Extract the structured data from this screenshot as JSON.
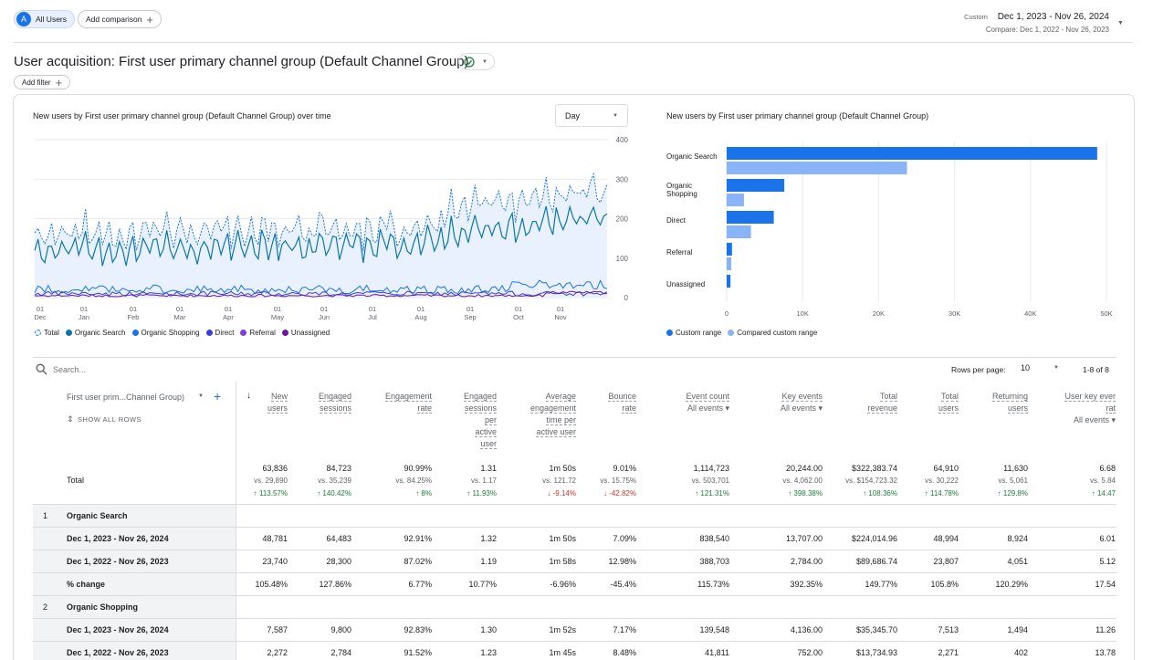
{
  "top": {
    "segment_badge": "A",
    "segment_label": "All Users",
    "add_comparison": "Add comparison",
    "date_range_label": "Custom",
    "date_range": "Dec 1, 2023 - Nov 26, 2024",
    "compare_range": "Compare: Dec 1, 2022 - Nov 26, 2023"
  },
  "page": {
    "title": "User acquisition: First user primary channel group (Default Channel Group)",
    "add_filter": "Add filter"
  },
  "line_chart": {
    "title": "New users by First user primary channel group (Default Channel Group) over time",
    "granularity": "Day",
    "y_ticks": [
      "400",
      "300",
      "200",
      "100",
      "0"
    ],
    "x_ticks": [
      {
        "d": "01",
        "m": "Dec"
      },
      {
        "d": "01",
        "m": "Jan"
      },
      {
        "d": "01",
        "m": "Feb"
      },
      {
        "d": "01",
        "m": "Mar"
      },
      {
        "d": "01",
        "m": "Apr"
      },
      {
        "d": "01",
        "m": "May"
      },
      {
        "d": "01",
        "m": "Jun"
      },
      {
        "d": "01",
        "m": "Jul"
      },
      {
        "d": "01",
        "m": "Aug"
      },
      {
        "d": "01",
        "m": "Sep"
      },
      {
        "d": "01",
        "m": "Oct"
      },
      {
        "d": "01",
        "m": "Nov"
      }
    ],
    "legend": [
      {
        "label": "Total",
        "color": "#c5dcf5"
      },
      {
        "label": "Organic Search",
        "color": "#0b76a8"
      },
      {
        "label": "Organic Shopping",
        "color": "#1a73e8"
      },
      {
        "label": "Direct",
        "color": "#3b3fd8"
      },
      {
        "label": "Referral",
        "color": "#7e3fd8"
      },
      {
        "label": "Unassigned",
        "color": "#6a1b9a"
      }
    ]
  },
  "chart_data": [
    {
      "type": "bar",
      "title": "New users by First user primary channel group (Default Channel Group)",
      "categories": [
        "Organic Search",
        "Organic Shopping",
        "Direct",
        "Referral",
        "Unassigned"
      ],
      "series": [
        {
          "name": "Custom range",
          "values": [
            48781,
            7587,
            6200,
            700,
            500
          ],
          "color": "#1a73e8"
        },
        {
          "name": "Compared custom range",
          "values": [
            23740,
            2272,
            3200,
            600,
            0
          ],
          "color": "#8ab4f8"
        }
      ],
      "x_ticks": [
        "0",
        "10K",
        "20K",
        "30K",
        "40K",
        "50K"
      ],
      "xlim": [
        0,
        50000
      ],
      "orientation": "horizontal",
      "legend": "bottom"
    }
  ],
  "table": {
    "search_placeholder": "Search...",
    "rows_per_page_label": "Rows per page:",
    "rows_per_page": "10",
    "pagination": "1-8 of 8",
    "dimension_header": "First user prim...Channel Group)",
    "show_all_rows": "SHOW ALL ROWS",
    "headers": [
      {
        "l1": "New",
        "l2": "users",
        "l3": "",
        "l4": "",
        "sub": ""
      },
      {
        "l1": "Engaged",
        "l2": "sessions",
        "l3": "",
        "l4": "",
        "sub": ""
      },
      {
        "l1": "Engagement",
        "l2": "rate",
        "l3": "",
        "l4": "",
        "sub": ""
      },
      {
        "l1": "Engaged",
        "l2": "sessions",
        "l3": "per",
        "l4": "active",
        "l5": "user",
        "sub": ""
      },
      {
        "l1": "Average",
        "l2": "engagement",
        "l3": "time per",
        "l4": "active user",
        "sub": ""
      },
      {
        "l1": "Bounce",
        "l2": "rate",
        "l3": "",
        "l4": "",
        "sub": ""
      },
      {
        "l1": "Event count",
        "l2": "",
        "l3": "",
        "l4": "",
        "sub": "All events"
      },
      {
        "l1": "Key events",
        "l2": "",
        "l3": "",
        "l4": "",
        "sub": "All events"
      },
      {
        "l1": "Total",
        "l2": "revenue",
        "l3": "",
        "l4": "",
        "sub": ""
      },
      {
        "l1": "Total",
        "l2": "users",
        "l3": "",
        "l4": "",
        "sub": ""
      },
      {
        "l1": "Returning",
        "l2": "users",
        "l3": "",
        "l4": "",
        "sub": ""
      },
      {
        "l1": "User key ever",
        "l2": "rat",
        "l3": "",
        "l4": "",
        "sub": "All events"
      }
    ],
    "total_label": "Total",
    "totals": [
      "63,836",
      "84,723",
      "90.99%",
      "1.31",
      "1m 50s",
      "9.01%",
      "1,114,723",
      "20,244.00",
      "$322,383.74",
      "64,910",
      "11,630",
      "6.68"
    ],
    "totals_vs": [
      "vs. 29,890",
      "vs. 35,239",
      "vs. 84.25%",
      "vs. 1.17",
      "vs. 121.72",
      "vs. 15.75%",
      "vs. 503,701",
      "vs. 4,062.00",
      "vs. $154,723.32",
      "vs. 30,222",
      "vs. 5,061",
      "vs. 5.84"
    ],
    "totals_change": [
      {
        "v": "113.57%",
        "dir": "up"
      },
      {
        "v": "140.42%",
        "dir": "up"
      },
      {
        "v": "8%",
        "dir": "up"
      },
      {
        "v": "11.93%",
        "dir": "up"
      },
      {
        "v": "-9.14%",
        "dir": "down"
      },
      {
        "v": "-42.82%",
        "dir": "down"
      },
      {
        "v": "121.31%",
        "dir": "up"
      },
      {
        "v": "398.38%",
        "dir": "up"
      },
      {
        "v": "108.36%",
        "dir": "up"
      },
      {
        "v": "114.78%",
        "dir": "up"
      },
      {
        "v": "129.8%",
        "dir": "up"
      },
      {
        "v": "14.47",
        "dir": "up"
      }
    ],
    "groups": [
      {
        "index": "1",
        "name": "Organic Search",
        "rows": [
          {
            "label": "Dec 1, 2023 - Nov 26, 2024",
            "values": [
              "48,781",
              "64,483",
              "92.91%",
              "1.32",
              "1m 50s",
              "7.09%",
              "838,540",
              "13,707.00",
              "$224,014.96",
              "48,994",
              "8,924",
              "6.01"
            ]
          },
          {
            "label": "Dec 1, 2022 - Nov 26, 2023",
            "values": [
              "23,740",
              "28,300",
              "87.02%",
              "1.19",
              "1m 58s",
              "12.98%",
              "388,703",
              "2,784.00",
              "$89,686.74",
              "23,807",
              "4,051",
              "5.12"
            ]
          },
          {
            "label": "% change",
            "values": [
              "105.48%",
              "127.86%",
              "6.77%",
              "10.77%",
              "-6.96%",
              "-45.4%",
              "115.73%",
              "392.35%",
              "149.77%",
              "105.8%",
              "120.29%",
              "17.54"
            ]
          }
        ]
      },
      {
        "index": "2",
        "name": "Organic Shopping",
        "rows": [
          {
            "label": "Dec 1, 2023 - Nov 26, 2024",
            "values": [
              "7,587",
              "9,800",
              "92.83%",
              "1.30",
              "1m 52s",
              "7.17%",
              "139,548",
              "4,136.00",
              "$35,345.70",
              "7,513",
              "1,494",
              "11.26"
            ]
          },
          {
            "label": "Dec 1, 2022 - Nov 26, 2023",
            "values": [
              "2,272",
              "2,784",
              "91.52%",
              "1.23",
              "1m 45s",
              "8.48%",
              "41,811",
              "752.00",
              "$13,734.93",
              "2,271",
              "402",
              "13.78"
            ]
          }
        ]
      }
    ]
  }
}
